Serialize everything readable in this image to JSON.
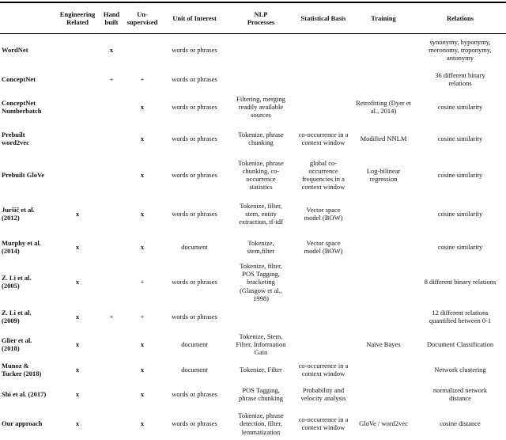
{
  "table": {
    "columns": [
      {
        "key": "label",
        "label": ""
      },
      {
        "key": "eng",
        "label": "Engineering\nRelated"
      },
      {
        "key": "hand",
        "label": "Hand\nbuilt"
      },
      {
        "key": "unsup",
        "label": "Un-\nsupervised"
      },
      {
        "key": "unit",
        "label": "Unit of Interest"
      },
      {
        "key": "nlp",
        "label": "NLP\nProcesses"
      },
      {
        "key": "stat",
        "label": "Statistical Basis"
      },
      {
        "key": "train",
        "label": "Training"
      },
      {
        "key": "rel",
        "label": "Relations"
      }
    ],
    "rows": [
      {
        "label": "WordNet",
        "eng": "",
        "hand": "x",
        "unsup": "",
        "unit": "words or phrases",
        "nlp": "",
        "stat": "",
        "train": "",
        "rel": "synonymy, hyponymy,\nmeronomy, troponymy,\nantonymy"
      },
      {
        "label": "ConceptNet",
        "eng": "",
        "hand": "+",
        "unsup": "+",
        "unit": "words or phrases",
        "nlp": "",
        "stat": "",
        "train": "",
        "rel": "36 different binary\nrelations"
      },
      {
        "label": "ConceptNet\nNumberbatch",
        "eng": "",
        "hand": "",
        "unsup": "x",
        "unit": "words or phrases",
        "nlp": "Filtering, merging\nreadily available\nsources",
        "stat": "",
        "train": "Retrofitting (Dyer et\nal., 2014)",
        "rel": "cosine similarity"
      },
      {
        "label": "Prebuilt\nword2vec",
        "eng": "",
        "hand": "",
        "unsup": "x",
        "unit": "words or phrases",
        "nlp": "Tokenize, phrase\nchunking",
        "stat": "co-occurrence in a\ncontext window",
        "train": "Modified NNLM",
        "rel": "cosine similarity"
      },
      {
        "label": "Prebuilt GloVe",
        "eng": "",
        "hand": "",
        "unsup": "x",
        "unit": "words or phrases",
        "nlp": "Tokenize, phrase\nchunking, co-\noccurrence\nstatistics",
        "stat": "global co-\noccurrence\nfrequencies in a\ncontext window",
        "train": "Log-bilinear\nregression",
        "rel": "cosine similarity"
      },
      {
        "label": "Juršič et al.\n(2012)",
        "eng": "x",
        "hand": "",
        "unsup": "x",
        "unit": "words or phrases",
        "nlp": "Tokenize, filter,\nstem, entity\nextraction, tf-idf",
        "stat": "Vector space\nmodel (BOW)",
        "train": "",
        "rel": "cosine similarity"
      },
      {
        "label": "Murphy et al.\n(2014)",
        "eng": "x",
        "hand": "",
        "unsup": "x",
        "unit": "document",
        "nlp": "Tokenize,\nstem,filter",
        "stat": "Vector space\nmodel (BOW)",
        "train": "",
        "rel": "cosine similarity"
      },
      {
        "label": "Z. Li et al.\n(2005)",
        "eng": "x",
        "hand": "",
        "unsup": "+",
        "unit": "words or phrases",
        "nlp": "Tokenize, filter,\nPOS Tagging,\nbracketing\n(Glasgow et al.,\n1998)",
        "stat": "",
        "train": "",
        "rel": "8 different binary relations"
      },
      {
        "label": "Z. Li et al.\n(2009)",
        "eng": "x",
        "hand": "+",
        "unsup": "+",
        "unit": "words or phrases",
        "nlp": "",
        "stat": "",
        "train": "",
        "rel": "12 different relations\nquantified between 0-1"
      },
      {
        "label": "Glier et al.\n(2018)",
        "eng": "x",
        "hand": "",
        "unsup": "x",
        "unit": "document",
        "nlp": "Tokenize, Stem,\nFilter, Information\nGain",
        "stat": "",
        "train": "Naïve Bayes",
        "rel": "Document Classification"
      },
      {
        "label": "Munoz &\nTucker (2018)",
        "eng": "x",
        "hand": "",
        "unsup": "x",
        "unit": "document",
        "nlp": "Tokenize, Filter",
        "stat": "co-occurrence in a\ncontext window",
        "train": "",
        "rel": "Network clustering"
      },
      {
        "label": "Shi et al. (2017)",
        "eng": "x",
        "hand": "",
        "unsup": "x",
        "unit": "words or phrases",
        "nlp": "POS Tagging,\nphrase chunking",
        "stat": "Probability and\nvelocity analysis",
        "train": "",
        "rel": "normalized network\ndistance"
      },
      {
        "label": "Our approach",
        "eng": "x",
        "hand": "",
        "unsup": "x",
        "unit": "words or phrases",
        "nlp": "Tokenize, phrase\ndetection, filter,\nlemmatization",
        "stat": "co-occurrence in a\ncontext window",
        "train": "GloVe / word2vec",
        "rel": "cosine distance"
      }
    ]
  }
}
